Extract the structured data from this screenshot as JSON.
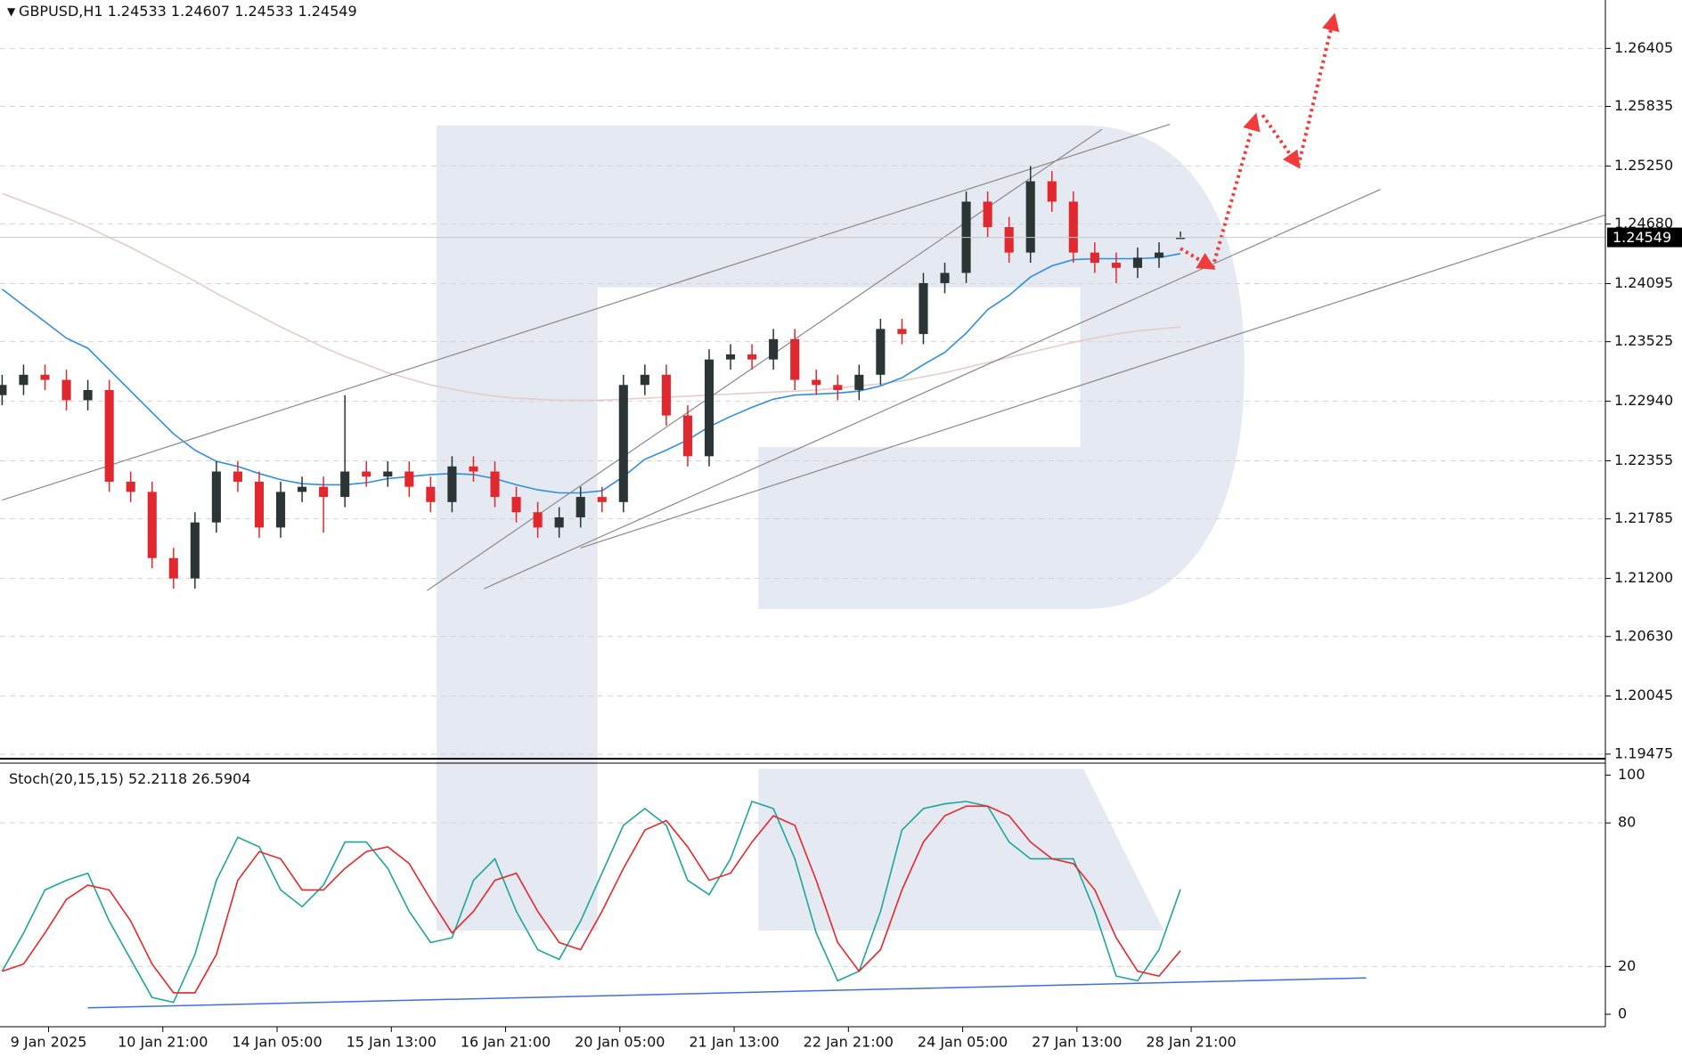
{
  "chart_data": [
    {
      "type": "candlestick",
      "symbol": "GBPUSD,H1",
      "x": [
        0,
        6,
        12,
        18,
        24,
        30,
        36,
        42,
        48,
        54,
        60,
        66,
        72,
        78,
        84,
        90,
        96,
        102,
        108,
        114,
        120,
        126,
        132,
        138,
        144,
        150,
        156,
        162,
        168,
        174,
        180,
        186,
        192,
        198,
        204,
        210,
        216,
        222,
        228,
        234,
        240,
        246,
        252,
        258,
        264,
        270,
        276,
        282,
        288,
        294,
        300,
        306,
        312,
        318,
        324,
        330
      ],
      "open": [
        1.23,
        1.231,
        1.232,
        1.2315,
        1.2295,
        1.2305,
        1.2215,
        1.2205,
        1.214,
        1.212,
        1.2175,
        1.2225,
        1.2215,
        1.217,
        1.2205,
        1.221,
        1.22,
        1.2225,
        1.222,
        1.2225,
        1.221,
        1.2195,
        1.223,
        1.2225,
        1.22,
        1.2185,
        1.217,
        1.218,
        1.22,
        1.2195,
        1.231,
        1.232,
        1.228,
        1.224,
        1.2335,
        1.234,
        1.2335,
        1.2355,
        1.2315,
        1.231,
        1.2305,
        1.232,
        1.2365,
        1.236,
        1.241,
        1.242,
        1.249,
        1.2465,
        1.244,
        1.251,
        1.249,
        1.244,
        1.243,
        1.2425,
        1.2435,
        1.24533
      ],
      "high": [
        1.232,
        1.233,
        1.233,
        1.2325,
        1.2315,
        1.2315,
        1.2225,
        1.2215,
        1.215,
        1.2185,
        1.2235,
        1.2235,
        1.2225,
        1.2215,
        1.222,
        1.222,
        1.23,
        1.2235,
        1.2235,
        1.2235,
        1.222,
        1.224,
        1.224,
        1.2235,
        1.221,
        1.2195,
        1.219,
        1.221,
        1.221,
        1.232,
        1.233,
        1.233,
        1.229,
        1.2345,
        1.235,
        1.235,
        1.2365,
        1.2365,
        1.2325,
        1.232,
        1.233,
        1.2375,
        1.2375,
        1.242,
        1.243,
        1.25,
        1.25,
        1.2475,
        1.2525,
        1.252,
        1.25,
        1.245,
        1.244,
        1.2445,
        1.245,
        1.24607
      ],
      "low": [
        1.229,
        1.23,
        1.2305,
        1.2285,
        1.2285,
        1.2205,
        1.2195,
        1.213,
        1.211,
        1.211,
        1.2165,
        1.2205,
        1.216,
        1.216,
        1.2195,
        1.2165,
        1.219,
        1.221,
        1.221,
        1.22,
        1.2185,
        1.2185,
        1.2215,
        1.219,
        1.2175,
        1.216,
        1.216,
        1.217,
        1.2185,
        1.2185,
        1.23,
        1.227,
        1.223,
        1.223,
        1.2325,
        1.2325,
        1.2325,
        1.2305,
        1.23,
        1.2295,
        1.2295,
        1.231,
        1.235,
        1.235,
        1.24,
        1.241,
        1.2455,
        1.243,
        1.243,
        1.248,
        1.243,
        1.242,
        1.241,
        1.2415,
        1.2425,
        1.24533
      ],
      "close": [
        1.231,
        1.232,
        1.2315,
        1.2295,
        1.2305,
        1.2215,
        1.2205,
        1.214,
        1.212,
        1.2175,
        1.2225,
        1.2215,
        1.217,
        1.2205,
        1.221,
        1.22,
        1.2225,
        1.222,
        1.2225,
        1.221,
        1.2195,
        1.223,
        1.2225,
        1.22,
        1.2185,
        1.217,
        1.218,
        1.22,
        1.2195,
        1.231,
        1.232,
        1.228,
        1.224,
        1.2335,
        1.234,
        1.2335,
        1.2355,
        1.2315,
        1.231,
        1.2305,
        1.232,
        1.2365,
        1.236,
        1.241,
        1.242,
        1.249,
        1.2465,
        1.244,
        1.251,
        1.249,
        1.244,
        1.243,
        1.2425,
        1.2435,
        1.244,
        1.24549
      ],
      "up_color": "#2b3535",
      "down_color": "#e0282e",
      "overlays": [
        {
          "color": "#2f8ee0",
          "values": [
            1.2404,
            1.2388,
            1.2372,
            1.2356,
            1.2346,
            1.2325,
            1.2304,
            1.2283,
            1.2262,
            1.2246,
            1.2235,
            1.223,
            1.2223,
            1.2217,
            1.2213,
            1.2212,
            1.2212,
            1.2214,
            1.2218,
            1.222,
            1.2222,
            1.2223,
            1.2222,
            1.2218,
            1.2212,
            1.2207,
            1.2204,
            1.2204,
            1.2206,
            1.222,
            1.2237,
            1.2246,
            1.2256,
            1.2269,
            1.2279,
            1.2288,
            1.2296,
            1.23,
            1.2301,
            1.2302,
            1.2304,
            1.2309,
            1.2317,
            1.233,
            1.2342,
            1.2361,
            1.2384,
            1.2398,
            1.2416,
            1.2427,
            1.2433,
            1.2434,
            1.2434,
            1.2434,
            1.2435,
            1.2439
          ]
        },
        {
          "color": "#e6cccc",
          "values": [
            1.2498,
            1.249,
            1.2482,
            1.2474,
            1.2465,
            1.2455,
            1.2445,
            1.2434,
            1.2423,
            1.2412,
            1.24,
            1.2389,
            1.2378,
            1.2367,
            1.2357,
            1.2347,
            1.2338,
            1.233,
            1.2322,
            1.2316,
            1.231,
            1.2306,
            1.2302,
            1.2299,
            1.2297,
            1.2296,
            1.2295,
            1.2295,
            1.2295,
            1.2296,
            1.2297,
            1.2298,
            1.2299,
            1.23,
            1.2301,
            1.2302,
            1.2303,
            1.2304,
            1.2305,
            1.2307,
            1.2309,
            1.2311,
            1.2314,
            1.2318,
            1.2322,
            1.2327,
            1.2332,
            1.2337,
            1.2342,
            1.2347,
            1.2352,
            1.2356,
            1.236,
            1.2363,
            1.2365,
            1.2367
          ]
        }
      ],
      "trendlines": [
        {
          "x": [
            0,
            327
          ],
          "y": [
            1.2197,
            1.2566
          ]
        },
        {
          "x": [
            119,
            308
          ],
          "y": [
            1.2108,
            1.2561
          ]
        },
        {
          "x": [
            135,
            386
          ],
          "y": [
            1.211,
            1.2502
          ]
        },
        {
          "x": [
            162,
            449
          ],
          "y": [
            1.215,
            1.2477
          ]
        }
      ],
      "trendline_color": "#8a8a8a",
      "forecast": [
        {
          "x": [
            330,
            339
          ],
          "y": [
            1.2444,
            1.2425
          ]
        },
        {
          "x": [
            339,
            351
          ],
          "y": [
            1.2425,
            1.2574
          ]
        },
        {
          "x": [
            353,
            363
          ],
          "y": [
            1.2575,
            1.2525
          ]
        },
        {
          "x": [
            363,
            373
          ],
          "y": [
            1.2525,
            1.2672
          ]
        }
      ],
      "forecast_color": "#f03c3c",
      "xlim": [
        -0.6,
        449
      ],
      "xticks": [
        {
          "value": 13,
          "label": "9 Jan 2025"
        },
        {
          "value": 45,
          "label": "10 Jan 21:00"
        },
        {
          "value": 77,
          "label": "14 Jan 05:00"
        },
        {
          "value": 109,
          "label": "15 Jan 13:00"
        },
        {
          "value": 141,
          "label": "16 Jan 21:00"
        },
        {
          "value": 173,
          "label": "20 Jan 05:00"
        },
        {
          "value": 205,
          "label": "21 Jan 13:00"
        },
        {
          "value": 237,
          "label": "22 Jan 21:00"
        },
        {
          "value": 269,
          "label": "24 Jan 05:00"
        },
        {
          "value": 301,
          "label": "27 Jan 13:00"
        },
        {
          "value": 333,
          "label": "28 Jan 21:00"
        }
      ],
      "ylim": [
        1.1943,
        1.2688
      ],
      "yticks": [
        1.26405,
        1.25835,
        {
          "value": 1.2525,
          "label": "1.25250"
        },
        {
          "value": 1.2468,
          "label": "1.24680"
        },
        1.24095,
        1.23525,
        {
          "value": 1.2294,
          "label": "1.22940"
        },
        1.22355,
        1.21785,
        {
          "value": 1.212,
          "label": "1.21200"
        },
        {
          "value": 1.2063,
          "label": "1.20630"
        },
        1.20045,
        1.19475
      ],
      "grid": true
    },
    {
      "type": "line",
      "title": "Stoch(20,15,15)",
      "x": [
        0,
        6,
        12,
        18,
        24,
        30,
        36,
        42,
        48,
        54,
        60,
        66,
        72,
        78,
        84,
        90,
        96,
        102,
        108,
        114,
        120,
        126,
        132,
        138,
        144,
        150,
        156,
        162,
        168,
        174,
        180,
        186,
        192,
        198,
        204,
        210,
        216,
        222,
        228,
        234,
        240,
        246,
        252,
        258,
        264,
        270,
        276,
        282,
        288,
        294,
        300,
        306,
        312,
        318,
        324,
        330
      ],
      "series": [
        {
          "color": "#1fa59b",
          "values": [
            18,
            34,
            52,
            56,
            59,
            39,
            23,
            7,
            5,
            25,
            56,
            74,
            70,
            52,
            45,
            54,
            72,
            72,
            61,
            43,
            30,
            32,
            56,
            65,
            43,
            27,
            23,
            39,
            59,
            79,
            86,
            79,
            56,
            50,
            65,
            89,
            86,
            65,
            34,
            14,
            18,
            43,
            77,
            86,
            88,
            89,
            87,
            72,
            65,
            65,
            65,
            43,
            16,
            14,
            27,
            52.2118
          ]
        },
        {
          "color": "#e8262b",
          "values": [
            18,
            21,
            34,
            48,
            54,
            52,
            39,
            21,
            9,
            9,
            25,
            56,
            68,
            65,
            52,
            52,
            61,
            68,
            70,
            63,
            48,
            34,
            43,
            56,
            59,
            43,
            30,
            27,
            43,
            61,
            77,
            81,
            70,
            56,
            59,
            72,
            83,
            79,
            56,
            30,
            18,
            27,
            52,
            72,
            83,
            87,
            87,
            83,
            72,
            65,
            63,
            52,
            32,
            18,
            16,
            26.5904
          ]
        }
      ],
      "levels": [
        80,
        20
      ],
      "trendline": {
        "x": [
          24,
          382
        ],
        "y": [
          2.7,
          15.2
        ]
      },
      "trendline_color": "#3f6fe0",
      "ylim": [
        -5.2,
        105
      ],
      "yticks": [
        100,
        80,
        20,
        0
      ]
    }
  ]
}
